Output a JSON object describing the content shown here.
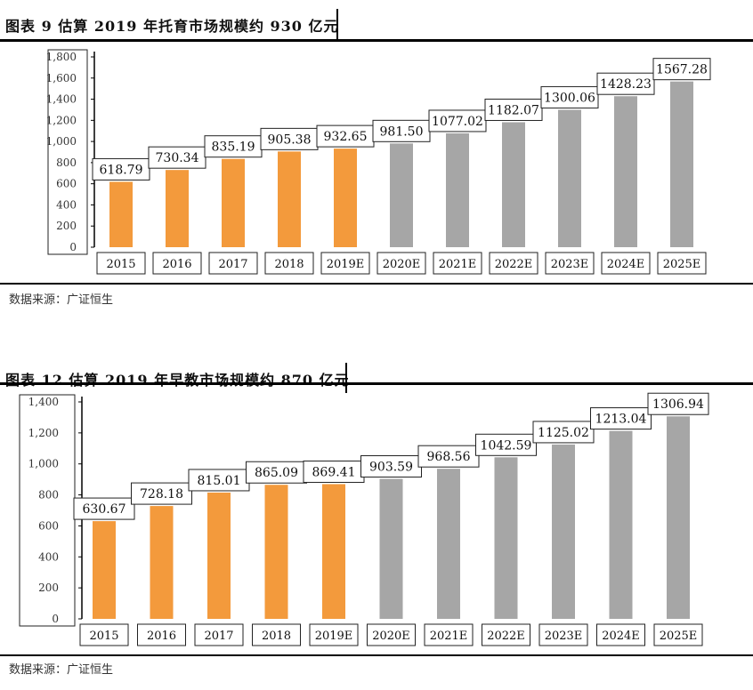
{
  "chart_data": [
    {
      "type": "bar",
      "title": "图表 9 估算 2019 年托育市场规模约 930 亿元",
      "categories": [
        "2015",
        "2016",
        "2017",
        "2018",
        "2019E",
        "2020E",
        "2021E",
        "2022E",
        "2023E",
        "2024E",
        "2025E"
      ],
      "values": [
        618.79,
        730.34,
        835.19,
        905.38,
        932.65,
        981.5,
        1077.02,
        1182.07,
        1300.06,
        1428.23,
        1567.28
      ],
      "value_labels": [
        "618.79",
        "730.34",
        "835.19",
        "905.38",
        "932.65",
        "981.50",
        "1077.02",
        "1182.07",
        "1300.06",
        "1428.23",
        "1567.28"
      ],
      "ylim": [
        0,
        1800
      ],
      "yticks": [
        "0",
        "200",
        "400",
        "600",
        "800",
        "1,000",
        "1,200",
        "1,400",
        "1,600",
        "1,800"
      ],
      "xlabel": "",
      "ylabel": "",
      "source": "数据来源：广证恒生",
      "colors": {
        "actual": "#F39A3C",
        "estimate": "#A6A6A6"
      },
      "actual_count": 5,
      "grid": false,
      "legend": "none"
    },
    {
      "type": "bar",
      "title": "图表 12 估算 2019 年早教市场规模约 870 亿元",
      "categories": [
        "2015",
        "2016",
        "2017",
        "2018",
        "2019E",
        "2020E",
        "2021E",
        "2022E",
        "2023E",
        "2024E",
        "2025E"
      ],
      "values": [
        630.67,
        728.18,
        815.01,
        865.09,
        869.41,
        903.59,
        968.56,
        1042.59,
        1125.02,
        1213.04,
        1306.94
      ],
      "value_labels": [
        "630.67",
        "728.18",
        "815.01",
        "865.09",
        "869.41",
        "903.59",
        "968.56",
        "1042.59",
        "1125.02",
        "1213.04",
        "1306.94"
      ],
      "ylim": [
        0,
        1400
      ],
      "yticks": [
        "0",
        "200",
        "400",
        "600",
        "800",
        "1,000",
        "1,200",
        "1,400"
      ],
      "xlabel": "",
      "ylabel": "",
      "source": "数据来源：广证恒生",
      "colors": {
        "actual": "#F39A3C",
        "estimate": "#A6A6A6"
      },
      "actual_count": 5,
      "grid": false,
      "legend": "none"
    }
  ]
}
